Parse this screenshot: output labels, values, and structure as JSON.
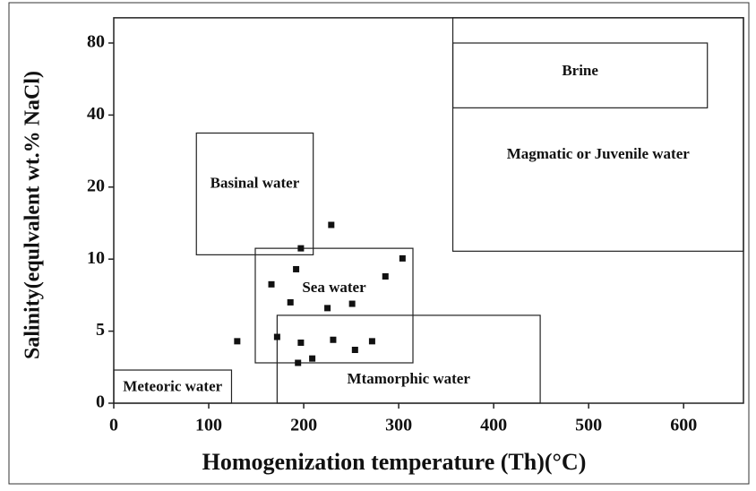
{
  "chart_data": {
    "type": "scatter",
    "x_label": "Homogenization temperature (Th)(°C)",
    "y_label": "Salinity(equlvalent wt.% NaCl)",
    "xlim": [
      0,
      663
    ],
    "ylim": [
      0,
      94
    ],
    "xticks": [
      0,
      100,
      200,
      300,
      400,
      500,
      600
    ],
    "yticks": [
      0,
      5,
      10,
      20,
      40,
      80
    ],
    "color": "#111111",
    "x": [
      130,
      166,
      172,
      186,
      192,
      197,
      197,
      194,
      209,
      225,
      229,
      231,
      251,
      254,
      272,
      286,
      304
    ],
    "values": [
      4.3,
      8.25,
      4.6,
      7.0,
      9.3,
      11.5,
      4.2,
      2.8,
      3.1,
      6.6,
      14.75,
      4.4,
      6.9,
      3.7,
      4.3,
      8.8,
      10.1
    ],
    "regions": [
      {
        "label": "Meteoric water",
        "x": [
          0,
          124
        ],
        "y": [
          0,
          2.3
        ]
      },
      {
        "label": "Basinal water",
        "x": [
          87,
          210
        ],
        "y": [
          10.6,
          35
        ]
      },
      {
        "label": "Sea water",
        "x": [
          149,
          315
        ],
        "y": [
          2.8,
          11.5
        ]
      },
      {
        "label": "Mtamorphic water",
        "x": [
          172,
          449
        ],
        "y": [
          0,
          6.1
        ]
      },
      {
        "label": "Magmatic or Juvenile water",
        "x": [
          357,
          663
        ],
        "y": [
          11.1,
          94
        ]
      },
      {
        "label": "Brine",
        "x": [
          357,
          625
        ],
        "y": [
          44,
          80
        ]
      }
    ]
  }
}
